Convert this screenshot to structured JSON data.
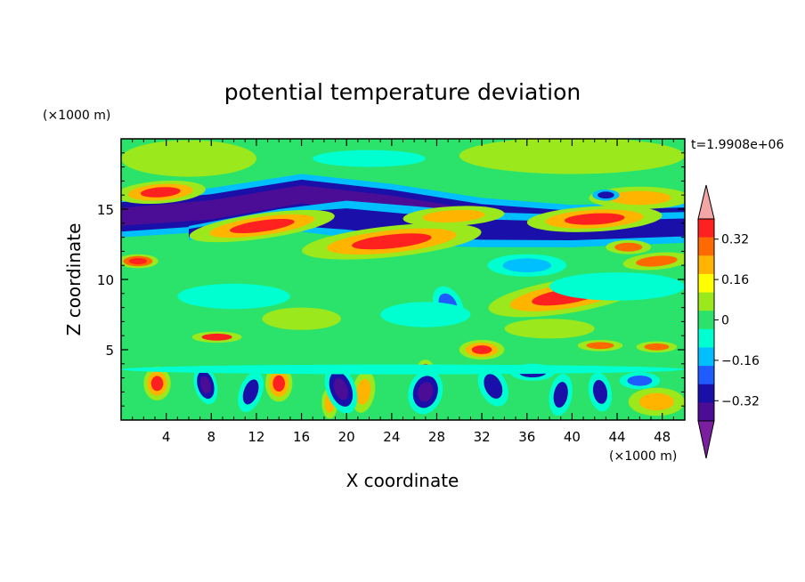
{
  "chart_data": {
    "type": "heatmap",
    "title": "potential temperature deviation",
    "xlabel": "X coordinate",
    "ylabel": "Z coordinate",
    "x_unit": "(×1000 m)",
    "y_unit": "(×1000 m)",
    "time_label": "t=1.9908e+06",
    "xlim": [
      0,
      50
    ],
    "ylim": [
      0,
      20
    ],
    "x_ticks": [
      4,
      8,
      12,
      16,
      20,
      24,
      28,
      32,
      36,
      40,
      44,
      48
    ],
    "x_tick_labels": [
      "4",
      "8",
      "12",
      "16",
      "20",
      "24",
      "28",
      "32",
      "36",
      "40",
      "44",
      "48"
    ],
    "y_ticks": [
      5,
      10,
      15
    ],
    "y_tick_labels": [
      "5",
      "10",
      "15"
    ],
    "colorbar": {
      "levels": [
        -0.4,
        -0.32,
        -0.24,
        -0.16,
        -0.08,
        0,
        0.08,
        0.16,
        0.24,
        0.32,
        0.4
      ],
      "colors": [
        "#7a1fa0",
        "#4b0d96",
        "#1a0fa8",
        "#1e5cff",
        "#00bfff",
        "#00ffd0",
        "#2be36a",
        "#9be81c",
        "#ffff00",
        "#ffb400",
        "#ff6a00",
        "#ff2020",
        "#f4a5a5"
      ],
      "tick_labels": [
        "0.32",
        "0.16",
        "0",
        "−0.16",
        "−0.32"
      ],
      "tick_values": [
        0.32,
        0.16,
        0,
        -0.16,
        -0.32
      ]
    },
    "features": [
      {
        "kind": "band",
        "top": [
          [
            0,
            15.9
          ],
          [
            8,
            16.5
          ],
          [
            16,
            17.5
          ],
          [
            24,
            16.8
          ],
          [
            32,
            15.8
          ],
          [
            40,
            15.3
          ],
          [
            50,
            15.5
          ]
        ],
        "bottom": [
          [
            0,
            13.0
          ],
          [
            8,
            13.4
          ],
          [
            16,
            14.6
          ],
          [
            24,
            13.8
          ],
          [
            32,
            12.6
          ],
          [
            40,
            12.3
          ],
          [
            50,
            12.8
          ]
        ],
        "levels": [
          -0.16,
          -0.32,
          -0.4
        ]
      },
      {
        "kind": "band",
        "top": [
          [
            6,
            13.8
          ],
          [
            14,
            15.0
          ],
          [
            20,
            15.6
          ],
          [
            26,
            15.2
          ],
          [
            32,
            14.8
          ],
          [
            40,
            14.6
          ],
          [
            50,
            14.8
          ]
        ],
        "bottom": [
          [
            6,
            12.8
          ],
          [
            14,
            13.6
          ],
          [
            20,
            13.0
          ],
          [
            26,
            12.4
          ],
          [
            32,
            12.3
          ],
          [
            40,
            12.3
          ],
          [
            50,
            12.6
          ]
        ],
        "levels": [
          -0.16,
          -0.32
        ]
      },
      {
        "kind": "blob",
        "cx": 3.5,
        "cy": 16.2,
        "rx": 4.0,
        "ry": 0.8,
        "rot": -4,
        "levels": [
          0.08,
          0.24,
          0.4
        ]
      },
      {
        "kind": "blob",
        "cx": 12.5,
        "cy": 13.8,
        "rx": 6.5,
        "ry": 0.9,
        "rot": -8,
        "levels": [
          0.08,
          0.24,
          0.4
        ]
      },
      {
        "kind": "blob",
        "cx": 24.0,
        "cy": 12.7,
        "rx": 8.0,
        "ry": 1.1,
        "rot": -6,
        "levels": [
          0.08,
          0.24,
          0.4
        ]
      },
      {
        "kind": "blob",
        "cx": 39.5,
        "cy": 8.8,
        "rx": 7.0,
        "ry": 1.2,
        "rot": -9,
        "levels": [
          0.08,
          0.24,
          0.4
        ]
      },
      {
        "kind": "blob",
        "cx": 29.5,
        "cy": 14.5,
        "rx": 4.5,
        "ry": 0.7,
        "rot": -3,
        "levels": [
          0.08,
          0.24
        ]
      },
      {
        "kind": "blob",
        "cx": 46.0,
        "cy": 15.8,
        "rx": 4.5,
        "ry": 0.8,
        "rot": 0,
        "levels": [
          0.08,
          0.24
        ]
      },
      {
        "kind": "blob",
        "cx": 42.0,
        "cy": 14.3,
        "rx": 6.0,
        "ry": 0.9,
        "rot": -3,
        "levels": [
          0.08,
          0.24,
          0.4
        ]
      },
      {
        "kind": "blob",
        "cx": 1.5,
        "cy": 11.3,
        "rx": 1.8,
        "ry": 0.5,
        "rot": 0,
        "levels": [
          0.08,
          0.32,
          0.4
        ]
      },
      {
        "kind": "blob",
        "cx": 47.5,
        "cy": 11.3,
        "rx": 3.0,
        "ry": 0.6,
        "rot": -5,
        "levels": [
          0.08,
          0.32
        ]
      },
      {
        "kind": "blob",
        "cx": 45.0,
        "cy": 12.3,
        "rx": 2.0,
        "ry": 0.5,
        "rot": 0,
        "levels": [
          0.08,
          0.32
        ]
      },
      {
        "kind": "blob",
        "cx": 8.5,
        "cy": 5.9,
        "rx": 2.2,
        "ry": 0.4,
        "rot": 0,
        "levels": [
          0.08,
          0.4
        ]
      },
      {
        "kind": "blob",
        "cx": 3.2,
        "cy": 2.6,
        "rx": 1.2,
        "ry": 1.2,
        "rot": 0,
        "levels": [
          0.08,
          0.24,
          0.4
        ]
      },
      {
        "kind": "blob",
        "cx": 14.0,
        "cy": 2.6,
        "rx": 1.2,
        "ry": 1.3,
        "rot": 0,
        "levels": [
          0.08,
          0.24,
          0.4
        ]
      },
      {
        "kind": "blob",
        "cx": 27.0,
        "cy": 3.5,
        "rx": 0.8,
        "ry": 0.8,
        "rot": 0,
        "levels": [
          0.08,
          0.4
        ]
      },
      {
        "kind": "blob",
        "cx": 32.0,
        "cy": 5.0,
        "rx": 2.0,
        "ry": 0.7,
        "rot": 0,
        "levels": [
          0.08,
          0.24,
          0.4
        ]
      },
      {
        "kind": "blob",
        "cx": 42.5,
        "cy": 5.3,
        "rx": 2.0,
        "ry": 0.4,
        "rot": 0,
        "levels": [
          0.08,
          0.32
        ]
      },
      {
        "kind": "blob",
        "cx": 47.5,
        "cy": 5.2,
        "rx": 1.8,
        "ry": 0.4,
        "rot": 0,
        "levels": [
          0.08,
          0.32
        ]
      },
      {
        "kind": "blob",
        "cx": 47.5,
        "cy": 1.3,
        "rx": 2.5,
        "ry": 1.0,
        "rot": 0,
        "levels": [
          0.08,
          0.24
        ]
      },
      {
        "kind": "blob",
        "cx": 21.5,
        "cy": 2.0,
        "rx": 1.0,
        "ry": 1.5,
        "rot": 10,
        "levels": [
          0.08,
          0.24
        ]
      },
      {
        "kind": "blob",
        "cx": 18.5,
        "cy": 1.2,
        "rx": 0.7,
        "ry": 1.1,
        "rot": 0,
        "levels": [
          0.08,
          0.24
        ]
      },
      {
        "kind": "blob",
        "cx": 7.5,
        "cy": 2.5,
        "rx": 1.0,
        "ry": 1.4,
        "rot": -15,
        "levels": [
          -0.08,
          -0.32,
          -0.4
        ]
      },
      {
        "kind": "blob",
        "cx": 11.5,
        "cy": 2.0,
        "rx": 1.0,
        "ry": 1.5,
        "rot": 20,
        "levels": [
          -0.08,
          -0.32
        ]
      },
      {
        "kind": "blob",
        "cx": 19.5,
        "cy": 2.2,
        "rx": 1.3,
        "ry": 1.8,
        "rot": -20,
        "levels": [
          -0.08,
          -0.32,
          -0.4
        ]
      },
      {
        "kind": "blob",
        "cx": 27.0,
        "cy": 2.0,
        "rx": 1.5,
        "ry": 1.6,
        "rot": 15,
        "levels": [
          -0.08,
          -0.32,
          -0.4
        ]
      },
      {
        "kind": "blob",
        "cx": 33.0,
        "cy": 2.4,
        "rx": 1.2,
        "ry": 1.5,
        "rot": -25,
        "levels": [
          -0.08,
          -0.32
        ]
      },
      {
        "kind": "blob",
        "cx": 36.5,
        "cy": 3.4,
        "rx": 2.0,
        "ry": 0.6,
        "rot": 0,
        "levels": [
          -0.08,
          -0.32
        ]
      },
      {
        "kind": "blob",
        "cx": 39.0,
        "cy": 1.8,
        "rx": 1.0,
        "ry": 1.5,
        "rot": 10,
        "levels": [
          -0.08,
          -0.32
        ]
      },
      {
        "kind": "blob",
        "cx": 42.5,
        "cy": 2.0,
        "rx": 1.0,
        "ry": 1.4,
        "rot": -10,
        "levels": [
          -0.08,
          -0.32
        ]
      },
      {
        "kind": "blob",
        "cx": 46.0,
        "cy": 2.8,
        "rx": 1.8,
        "ry": 0.6,
        "rot": 0,
        "levels": [
          -0.08,
          -0.24
        ]
      },
      {
        "kind": "blob",
        "cx": 25.0,
        "cy": 3.6,
        "rx": 25.0,
        "ry": 0.35,
        "rot": 0,
        "levels": [
          -0.08
        ]
      },
      {
        "kind": "blob",
        "cx": 29.0,
        "cy": 8.2,
        "rx": 1.2,
        "ry": 1.4,
        "rot": -30,
        "levels": [
          -0.08,
          -0.24
        ]
      },
      {
        "kind": "blob",
        "cx": 36.0,
        "cy": 11.0,
        "rx": 3.5,
        "ry": 0.8,
        "rot": 0,
        "levels": [
          -0.08,
          -0.16
        ]
      },
      {
        "kind": "blob",
        "cx": 43.0,
        "cy": 16.0,
        "rx": 1.2,
        "ry": 0.4,
        "rot": 0,
        "levels": [
          -0.16,
          -0.32
        ]
      },
      {
        "kind": "blob",
        "cx": 10.0,
        "cy": 8.8,
        "rx": 5.0,
        "ry": 0.9,
        "rot": 0,
        "levels": [
          -0.08
        ]
      },
      {
        "kind": "blob",
        "cx": 27.0,
        "cy": 7.5,
        "rx": 4.0,
        "ry": 0.9,
        "rot": 0,
        "levels": [
          -0.08
        ]
      },
      {
        "kind": "blob",
        "cx": 44.0,
        "cy": 9.5,
        "rx": 6.0,
        "ry": 1.0,
        "rot": 0,
        "levels": [
          -0.08
        ]
      },
      {
        "kind": "blob",
        "cx": 6.0,
        "cy": 18.6,
        "rx": 6.0,
        "ry": 1.3,
        "rot": 0,
        "levels": [
          0.08
        ]
      },
      {
        "kind": "blob",
        "cx": 40.0,
        "cy": 18.8,
        "rx": 10.0,
        "ry": 1.3,
        "rot": 0,
        "levels": [
          0.08
        ]
      },
      {
        "kind": "blob",
        "cx": 22.0,
        "cy": 18.6,
        "rx": 5.0,
        "ry": 0.6,
        "rot": 0,
        "levels": [
          -0.08
        ]
      },
      {
        "kind": "blob",
        "cx": 16.0,
        "cy": 7.2,
        "rx": 3.5,
        "ry": 0.8,
        "rot": 0,
        "levels": [
          0.08
        ]
      },
      {
        "kind": "blob",
        "cx": 38.0,
        "cy": 6.5,
        "rx": 4.0,
        "ry": 0.7,
        "rot": 0,
        "levels": [
          0.08
        ]
      }
    ]
  }
}
